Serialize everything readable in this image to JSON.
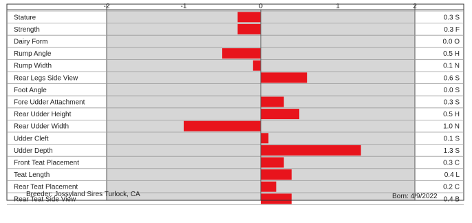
{
  "chart_data": {
    "type": "bar",
    "orientation": "horizontal",
    "xlim": [
      -2,
      2
    ],
    "x_ticks": [
      "-2",
      "-1",
      "0",
      "1",
      "2"
    ],
    "grid": true,
    "bar_color": "#e8141c",
    "categories": [
      "Stature",
      "Strength",
      "Dairy Form",
      "Rump Angle",
      "Rump Width",
      "Rear Legs Side View",
      "Foot Angle",
      "Fore Udder Attachment",
      "Rear Udder Height",
      "Rear Udder Width",
      "Udder Cleft",
      "Udder Depth",
      "Front Teat Placement",
      "Teat Length",
      "Rear Teat Placement",
      "Rear Teat Side View"
    ],
    "values": [
      -0.3,
      -0.3,
      0.0,
      -0.5,
      -0.1,
      0.6,
      0.0,
      0.3,
      0.5,
      -1.0,
      0.1,
      1.3,
      0.3,
      0.4,
      0.2,
      0.4
    ],
    "value_labels": [
      "0.3 S",
      "0.3 F",
      "0.0 O",
      "0.5 H",
      "0.1 N",
      "0.6 S",
      "0.0 S",
      "0.3 S",
      "0.5 H",
      "1.0 N",
      "0.1 S",
      "1.3 S",
      "0.3 C",
      "0.4 L",
      "0.2 C",
      "0.4 B"
    ]
  },
  "footer": {
    "breeder": "Breeder:  Jossyland Sires  Turlock, CA",
    "born": "Born:  4/9/2022"
  }
}
